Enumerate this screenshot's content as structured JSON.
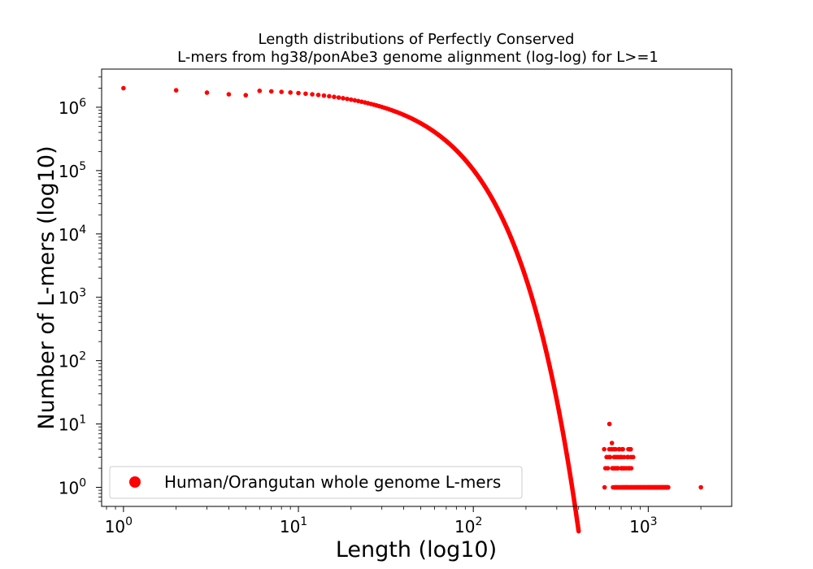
{
  "chart_data": {
    "type": "scatter",
    "title_line1": "Length distributions of Perfectly Conserved",
    "title_line2": "L-mers from hg38/ponAbe3 genome alignment (log-log) for L>=1",
    "xlabel": "Length (log10)",
    "ylabel": "Number of L-mers (log10)",
    "xscale": "log",
    "yscale": "log",
    "xlim": [
      0.75,
      3000
    ],
    "ylim": [
      0.5,
      4000000
    ],
    "x_ticks": [
      {
        "base": "10",
        "exp": "0",
        "value": 1
      },
      {
        "base": "10",
        "exp": "1",
        "value": 10
      },
      {
        "base": "10",
        "exp": "2",
        "value": 100
      },
      {
        "base": "10",
        "exp": "3",
        "value": 1000
      }
    ],
    "y_ticks": [
      {
        "base": "10",
        "exp": "0",
        "value": 1
      },
      {
        "base": "10",
        "exp": "1",
        "value": 10
      },
      {
        "base": "10",
        "exp": "2",
        "value": 100
      },
      {
        "base": "10",
        "exp": "3",
        "value": 1000
      },
      {
        "base": "10",
        "exp": "4",
        "value": 10000
      },
      {
        "base": "10",
        "exp": "5",
        "value": 100000
      },
      {
        "base": "10",
        "exp": "6",
        "value": 1000000
      }
    ],
    "series": [
      {
        "name": "Human/Orangutan whole genome L-mers",
        "color": "#ff0000",
        "marker": "circle",
        "curve_model": {
          "description": "y = 2000000 * exp(-(L/41)^1.22)",
          "x_range": [
            1,
            400
          ]
        },
        "points": [
          [
            1,
            2000000
          ],
          [
            2,
            1850000
          ],
          [
            3,
            1700000
          ],
          [
            4,
            1600000
          ],
          [
            5,
            1550000
          ],
          [
            600,
            10
          ],
          [
            620,
            5
          ],
          [
            650,
            4
          ],
          [
            700,
            2
          ],
          [
            750,
            2
          ],
          [
            800,
            2
          ],
          [
            820,
            3
          ],
          [
            860,
            1
          ],
          [
            900,
            1
          ],
          [
            950,
            1
          ],
          [
            1000,
            1
          ],
          [
            1100,
            1
          ],
          [
            1200,
            1
          ],
          [
            1300,
            1
          ],
          [
            2000,
            1
          ]
        ]
      }
    ],
    "legend": {
      "position": "lower-left",
      "label": "Human/Orangutan whole genome L-mers"
    },
    "grid": false
  }
}
